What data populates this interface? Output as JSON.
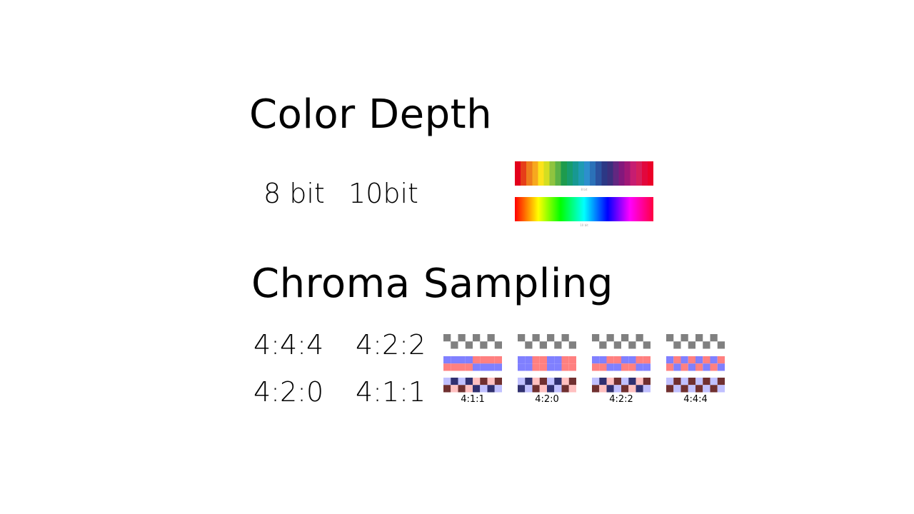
{
  "titles": {
    "color_depth": "Color Depth",
    "chroma_sampling": "Chroma Sampling"
  },
  "bit_labels": {
    "eight": "8 bit",
    "ten": "10bit"
  },
  "ratio_labels": [
    "4:4:4",
    "4:2:2",
    "4:2:0",
    "4:1:1"
  ],
  "gradient_8bit_colors": [
    "#e3001b",
    "#e63e18",
    "#ee7d1c",
    "#f7a81f",
    "#fce31b",
    "#d3de21",
    "#8fc43f",
    "#5bb246",
    "#1e9b4d",
    "#179c6e",
    "#179892",
    "#1f9bb3",
    "#2d8fcd",
    "#2b71b8",
    "#2b529f",
    "#2c3885",
    "#3b2f7d",
    "#622780",
    "#83187c",
    "#a01776",
    "#c61d71",
    "#d51f5c",
    "#e2073d",
    "#eb0028"
  ],
  "gradient_captions": {
    "eight": "8 bit",
    "ten": "10 bit"
  },
  "chroma_diagrams": [
    {
      "label": "4:1:1",
      "pattern": "411"
    },
    {
      "label": "4:2:0",
      "pattern": "420"
    },
    {
      "label": "4:2:2",
      "pattern": "422"
    },
    {
      "label": "4:4:4",
      "pattern": "444"
    }
  ],
  "colors": {
    "luma_gray": "#808080",
    "chroma_blue": "#8080ff",
    "chroma_red": "#ff8080",
    "dark_navy": "#303070",
    "light_lavender": "#c0c0ff",
    "dark_maroon": "#703030",
    "light_pink": "#ffc0c0"
  }
}
